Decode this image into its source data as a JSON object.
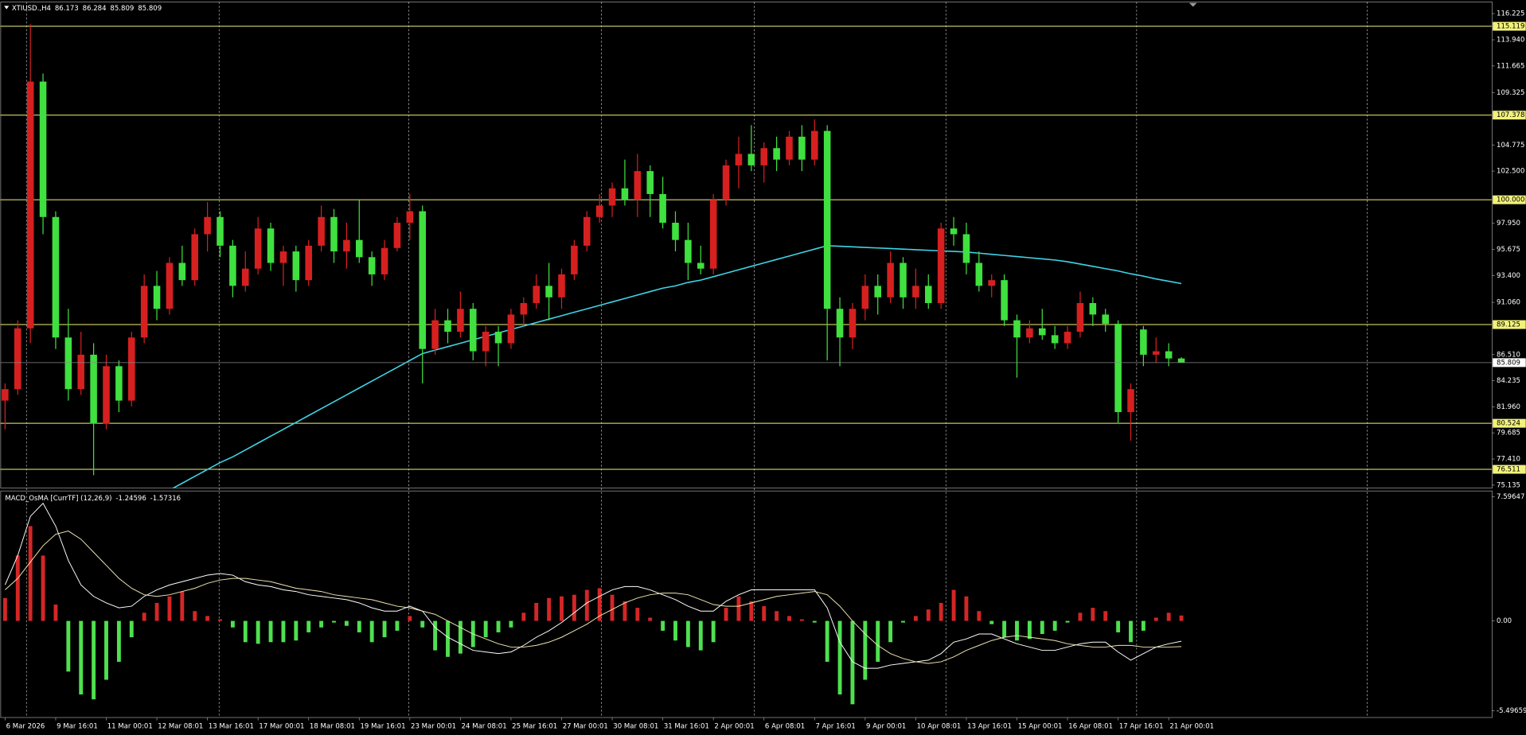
{
  "chart_data": [
    {
      "type": "candlestick",
      "title": "XTIUSD.,H4",
      "up_color": "#d62020",
      "down_color": "#3fe03f",
      "open": [
        82.5,
        83.5,
        88.8,
        110.3,
        98.5,
        88.0,
        83.5,
        86.5,
        80.5,
        85.5,
        82.5,
        88,
        92.5,
        90.5,
        94.5,
        93.0,
        97,
        98.5,
        96,
        92.5,
        94,
        97.5,
        94.5,
        95.5,
        93,
        96,
        98.5,
        95.5,
        96.5,
        95,
        93.5,
        95.8,
        98,
        99,
        87,
        89.5,
        88.5,
        90.5,
        86.8,
        88.5,
        87.5,
        90,
        91,
        92.5,
        91.5,
        93.5,
        96,
        98.5,
        99.5,
        101,
        100,
        102.5,
        100.5,
        98,
        96.5,
        94.5,
        94,
        100,
        103,
        104,
        103,
        104.5,
        103.5,
        105.5,
        103.5,
        106,
        90.5,
        88,
        90.5,
        92.5,
        91.5,
        94.5,
        91.5,
        92.5,
        91,
        97.5,
        97,
        94.5,
        92.5,
        93,
        89.5,
        88,
        88.8,
        88.2,
        87.5,
        88.5,
        91,
        90,
        89.2,
        81.5,
        88.7,
        86.5,
        86.8,
        86.173
      ],
      "high": [
        84.0,
        89.5,
        115.3,
        111,
        99,
        90.5,
        88.5,
        87.5,
        86.5,
        86,
        88.5,
        93.5,
        93.8,
        95.0,
        96.0,
        97.5,
        99.8,
        99,
        96.5,
        95.5,
        98.5,
        98,
        96,
        96,
        96.5,
        99.5,
        99.2,
        98,
        100,
        95.5,
        96.5,
        98.5,
        100.5,
        99.5,
        90.5,
        90.5,
        92.0,
        91,
        89,
        89,
        90.5,
        91.5,
        93.5,
        94.5,
        94,
        96.5,
        99,
        100.5,
        101.5,
        103.5,
        104.0,
        103,
        102,
        99,
        98,
        96,
        100.5,
        103.5,
        105.5,
        106.5,
        105,
        105.5,
        106,
        106.5,
        107,
        106.5,
        91.5,
        91,
        93.5,
        93.5,
        95.5,
        95,
        94,
        93.5,
        98.0,
        98.5,
        98,
        95.5,
        93.5,
        93.5,
        90,
        89.5,
        90.5,
        89,
        89,
        92.0,
        91.5,
        90.5,
        89.5,
        84.0,
        89.0,
        88,
        87.5,
        86.284
      ],
      "low": [
        80.0,
        83,
        87.5,
        97,
        87,
        82.5,
        83,
        76.0,
        80,
        81.5,
        82,
        87.5,
        89.5,
        90,
        92.5,
        92.5,
        95.5,
        95,
        91.5,
        92,
        93.5,
        93.8,
        92.5,
        92,
        92.5,
        95.5,
        94.5,
        94,
        94.5,
        92.5,
        93,
        95.5,
        96.5,
        84.0,
        86.5,
        87.5,
        88,
        86,
        85.5,
        85.5,
        87,
        89,
        90.5,
        89.5,
        90.5,
        93,
        95.5,
        98,
        98.5,
        99.5,
        98.5,
        98.5,
        97.5,
        95.5,
        93.0,
        93.5,
        93.5,
        99.5,
        101,
        102.5,
        101.5,
        102.5,
        103,
        102.5,
        103,
        86.0,
        85.5,
        87,
        89.5,
        90,
        91,
        90.5,
        90.5,
        90.5,
        90.5,
        96,
        93.5,
        92,
        91.5,
        89.0,
        84.5,
        87.5,
        87.8,
        87,
        87,
        88,
        89,
        88.5,
        80.5,
        79.0,
        85.5,
        85.8,
        85.5,
        85.809
      ],
      "close": [
        83.5,
        88.8,
        110.3,
        98.5,
        88.0,
        83.5,
        86.5,
        80.5,
        85.5,
        82.5,
        88,
        92.5,
        90.5,
        94.5,
        93.0,
        97,
        98.5,
        96,
        92.5,
        94,
        97.5,
        94.5,
        95.5,
        93,
        96,
        98.5,
        95.5,
        96.5,
        95,
        93.5,
        95.8,
        98,
        99,
        87,
        89.5,
        88.5,
        90.5,
        86.8,
        88.5,
        87.5,
        90,
        91,
        92.5,
        91.5,
        93.5,
        96,
        98.5,
        99.5,
        101,
        100,
        102.5,
        100.5,
        98,
        96.5,
        94.5,
        94,
        100,
        103,
        104,
        103,
        104.5,
        103.5,
        105.5,
        103.5,
        106,
        90.5,
        88,
        90.5,
        92.5,
        91.5,
        94.5,
        91.5,
        92.5,
        91,
        97.5,
        97,
        94.5,
        92.5,
        93,
        89.5,
        88,
        88.8,
        88.2,
        87.5,
        88.5,
        91,
        90,
        89.2,
        81.5,
        83.5,
        86.5,
        86.8,
        86.173,
        85.809
      ],
      "series": [
        {
          "color": "#3fd4e6",
          "values": [
            null,
            null,
            null,
            null,
            null,
            null,
            null,
            null,
            null,
            null,
            null,
            73.5,
            74.1,
            74.7,
            75.3,
            75.9,
            76.5,
            77.1,
            77.6,
            78.2,
            78.8,
            79.4,
            80.0,
            80.6,
            81.2,
            81.8,
            82.4,
            83.0,
            83.6,
            84.2,
            84.8,
            85.4,
            86.0,
            86.6,
            86.9,
            87.2,
            87.5,
            87.8,
            88.1,
            88.4,
            88.7,
            89.0,
            89.3,
            89.6,
            89.9,
            90.2,
            90.5,
            90.8,
            91.1,
            91.4,
            91.7,
            92.0,
            92.3,
            92.5,
            92.8,
            93.0,
            93.3,
            93.6,
            93.9,
            94.2,
            94.5,
            94.8,
            95.1,
            95.4,
            95.7,
            96.0,
            95.95,
            95.9,
            95.85,
            95.8,
            95.75,
            95.7,
            95.65,
            95.6,
            95.55,
            95.5,
            95.45,
            95.35,
            95.25,
            95.15,
            95.05,
            94.95,
            94.85,
            94.75,
            94.6,
            94.4,
            94.2,
            94.0,
            93.8,
            93.55,
            93.35,
            93.1,
            92.9,
            92.7
          ]
        }
      ],
      "ylim": [
        74.88,
        117.24
      ],
      "yticks": [
        116.225,
        {
          "value": 113.94,
          "label": "113.940"
        },
        111.665,
        109.325,
        104.775,
        {
          "value": 102.5,
          "label": "102.500"
        },
        {
          "value": 97.95,
          "label": "97.950"
        },
        95.675,
        {
          "value": 93.4,
          "label": "93.400"
        },
        {
          "value": 91.06,
          "label": "91.060"
        },
        {
          "value": 86.51,
          "label": "86.510"
        },
        84.235,
        {
          "value": 81.96,
          "label": "81.960"
        },
        79.685,
        {
          "value": 77.41,
          "label": "77.410"
        },
        75.135
      ],
      "levels": [
        115.119,
        107.378,
        {
          "value": 100,
          "label": "100.000"
        },
        89.125,
        80.524,
        76.511
      ],
      "level_color": "#f2f27a"
    },
    {
      "type": "macd",
      "title": "MACD_OsMA [CurrTF] (12,26,9)",
      "pos_color": "#d42626",
      "neg_color": "#4fe04f",
      "categories": [
        "6 Mar 2026",
        null,
        null,
        null,
        "9 Mar 16:01",
        null,
        null,
        null,
        "11 Mar 00:01",
        null,
        null,
        null,
        "12 Mar 08:01",
        null,
        null,
        null,
        "13 Mar 16:01",
        null,
        null,
        null,
        "17 Mar 00:01",
        null,
        null,
        null,
        "18 Mar 08:01",
        null,
        null,
        null,
        "19 Mar 16:01",
        null,
        null,
        null,
        "23 Mar 00:01",
        null,
        null,
        null,
        "24 Mar 08:01",
        null,
        null,
        null,
        "25 Mar 16:01",
        null,
        null,
        null,
        "27 Mar 00:01",
        null,
        null,
        null,
        "30 Mar 08:01",
        null,
        null,
        null,
        "31 Mar 16:01",
        null,
        null,
        null,
        "2 Apr 00:01",
        null,
        null,
        null,
        "6 Apr 08:01",
        null,
        null,
        null,
        "7 Apr 16:01",
        null,
        null,
        null,
        "9 Apr 00:01",
        null,
        null,
        null,
        "10 Apr 08:01",
        null,
        null,
        null,
        "13 Apr 16:01",
        null,
        null,
        null,
        "15 Apr 00:01",
        null,
        null,
        null,
        "16 Apr 08:01",
        null,
        null,
        null,
        "17 Apr 16:01",
        null,
        null,
        null,
        "21 Apr 00:01",
        null
      ],
      "values": [
        1.4,
        4.0,
        5.8,
        4.0,
        1.0,
        -3.1,
        -4.5,
        -4.8,
        -3.6,
        -2.5,
        -1.0,
        0.5,
        1.1,
        1.5,
        1.8,
        0.6,
        0.3,
        0.1,
        -0.4,
        -1.3,
        -1.4,
        -1.3,
        -1.3,
        -1.2,
        -0.7,
        -0.4,
        -0.1,
        -0.3,
        -0.7,
        -1.3,
        -1.0,
        -0.6,
        0.3,
        -0.4,
        -1.8,
        -2.2,
        -2.0,
        -1.6,
        -1.0,
        -0.7,
        -0.4,
        0.5,
        1.1,
        1.4,
        1.5,
        1.6,
        1.9,
        2.0,
        1.6,
        1.2,
        0.8,
        0.2,
        -0.6,
        -1.2,
        -1.6,
        -1.8,
        -1.3,
        0.8,
        1.5,
        1.2,
        0.9,
        0.6,
        0.3,
        0.1,
        -0.1,
        -2.5,
        -4.5,
        -5.1,
        -3.6,
        -2.5,
        -1.3,
        -0.1,
        0.3,
        0.7,
        1.1,
        1.9,
        1.5,
        0.6,
        -0.2,
        -1.0,
        -1.2,
        -1.1,
        -0.8,
        -0.6,
        -0.1,
        0.5,
        0.8,
        0.6,
        -0.7,
        -1.3,
        -0.6,
        0.2,
        0.5,
        0.33
      ],
      "series": [
        {
          "color": "#ffffff",
          "values": [
            2.2,
            4.0,
            6.4,
            7.2,
            5.8,
            3.7,
            2.2,
            1.5,
            1.1,
            0.8,
            0.9,
            1.5,
            1.9,
            2.2,
            2.4,
            2.6,
            2.8,
            2.9,
            2.8,
            2.4,
            2.2,
            2.1,
            1.9,
            1.8,
            1.6,
            1.5,
            1.4,
            1.3,
            1.1,
            0.8,
            0.6,
            0.6,
            0.9,
            0.6,
            -0.4,
            -1.0,
            -1.4,
            -1.8,
            -1.9,
            -2.0,
            -1.9,
            -1.5,
            -1.0,
            -0.6,
            -0.1,
            0.5,
            1.1,
            1.5,
            1.9,
            2.1,
            2.1,
            1.9,
            1.6,
            1.3,
            0.9,
            0.6,
            0.6,
            1.2,
            1.6,
            1.9,
            1.9,
            1.9,
            1.9,
            1.9,
            1.9,
            0.8,
            -1.3,
            -2.5,
            -2.9,
            -2.9,
            -2.7,
            -2.6,
            -2.5,
            -2.4,
            -2.0,
            -1.3,
            -1.1,
            -0.8,
            -0.8,
            -1.1,
            -1.4,
            -1.6,
            -1.8,
            -1.8,
            -1.6,
            -1.4,
            -1.3,
            -1.3,
            -1.9,
            -2.4,
            -2.0,
            -1.6,
            -1.4,
            -1.24596
          ]
        },
        {
          "color": "#efe6b0",
          "values": [
            1.9,
            2.6,
            3.6,
            4.6,
            5.3,
            5.5,
            5.0,
            4.2,
            3.4,
            2.6,
            2.0,
            1.6,
            1.5,
            1.6,
            1.8,
            2.0,
            2.3,
            2.5,
            2.6,
            2.6,
            2.5,
            2.4,
            2.2,
            2.0,
            1.9,
            1.8,
            1.6,
            1.5,
            1.4,
            1.3,
            1.1,
            0.9,
            0.8,
            0.6,
            0.4,
            0.0,
            -0.4,
            -0.8,
            -1.1,
            -1.4,
            -1.6,
            -1.6,
            -1.5,
            -1.3,
            -1.0,
            -0.6,
            -0.2,
            0.3,
            0.7,
            1.1,
            1.4,
            1.6,
            1.7,
            1.7,
            1.6,
            1.3,
            1.0,
            0.9,
            0.9,
            1.1,
            1.3,
            1.5,
            1.6,
            1.7,
            1.8,
            1.6,
            0.9,
            0.0,
            -0.8,
            -1.5,
            -2.0,
            -2.3,
            -2.5,
            -2.6,
            -2.5,
            -2.2,
            -1.8,
            -1.5,
            -1.2,
            -1.0,
            -0.9,
            -1.0,
            -1.1,
            -1.2,
            -1.4,
            -1.5,
            -1.6,
            -1.6,
            -1.5,
            -1.5,
            -1.6,
            -1.6,
            -1.6,
            -1.57316
          ]
        }
      ],
      "ylim": [
        -5.91,
        7.95
      ],
      "yticks": [
        7.59647,
        {
          "value": 0,
          "label": "0.00"
        },
        -5.49659
      ]
    }
  ]
}
